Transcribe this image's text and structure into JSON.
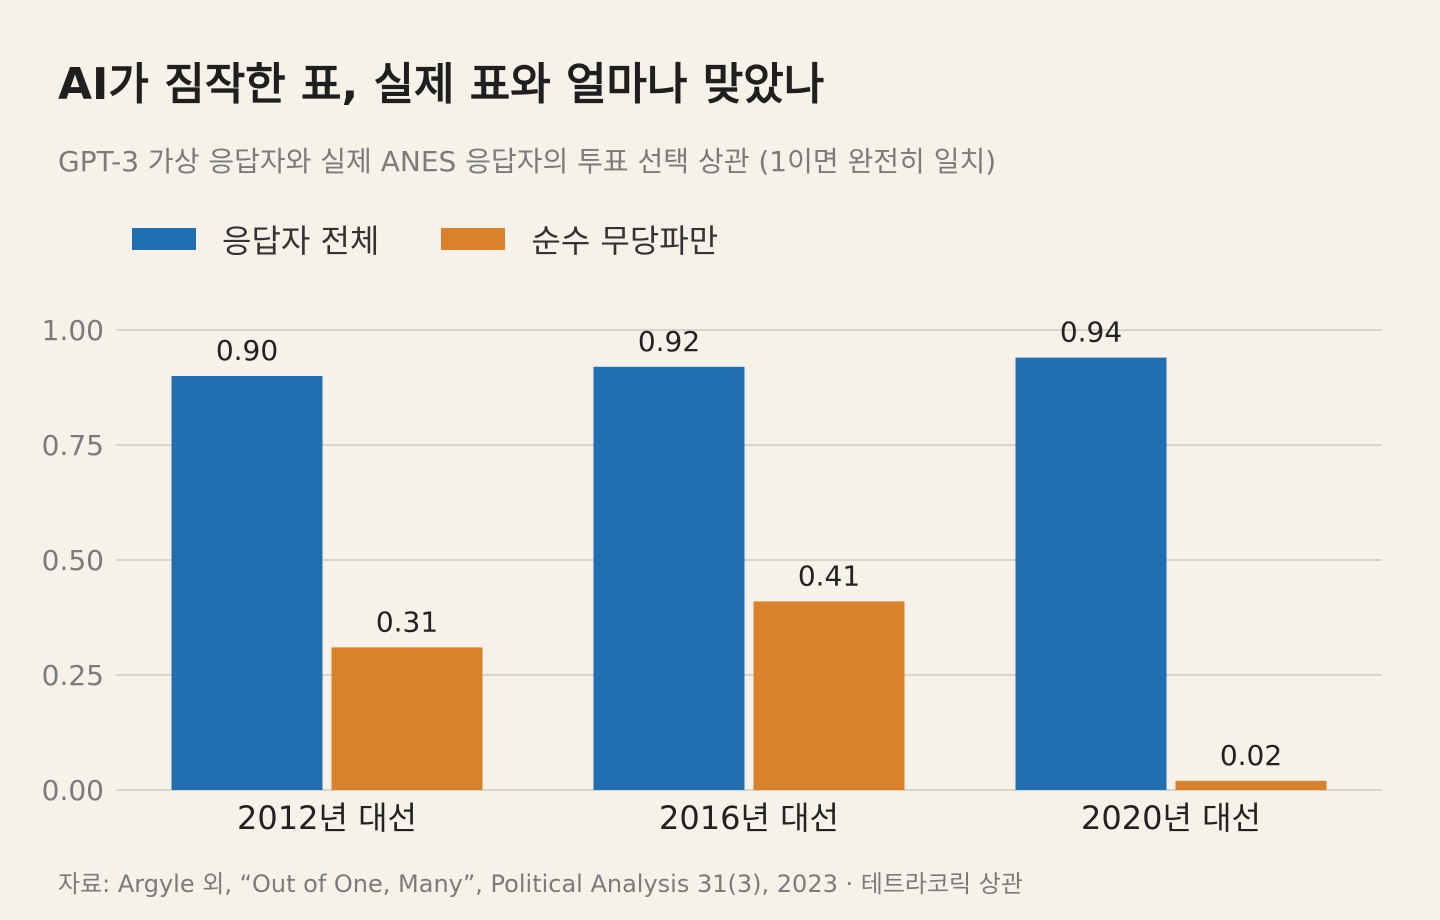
{
  "title": "AI가 짐작한 표, 실제 표와 얼마나 맞았나",
  "subtitle": "GPT-3 가상 응답자와 실제 ANES 응답자의 투표 선택 상관 (1이면 완전히 일치)",
  "source": "자료: Argyle 외, “Out of One, Many”, Political Analysis 31(3), 2023 · 테트라코릭 상관",
  "chart_data": {
    "type": "bar",
    "categories": [
      "2012년 대선",
      "2016년 대선",
      "2020년 대선"
    ],
    "series": [
      {
        "name": "응답자 전체",
        "values": [
          0.9,
          0.92,
          0.94
        ],
        "labels": [
          "0.90",
          "0.92",
          "0.94"
        ],
        "color": "#216fb1"
      },
      {
        "name": "순수 무당파만",
        "values": [
          0.31,
          0.41,
          0.02
        ],
        "labels": [
          "0.31",
          "0.41",
          "0.02"
        ],
        "color": "#da822b"
      }
    ],
    "ylim": [
      0,
      1
    ],
    "yticks": [
      "0.00",
      "0.25",
      "0.50",
      "0.75",
      "1.00"
    ],
    "grid": true,
    "legend": "top-left"
  }
}
